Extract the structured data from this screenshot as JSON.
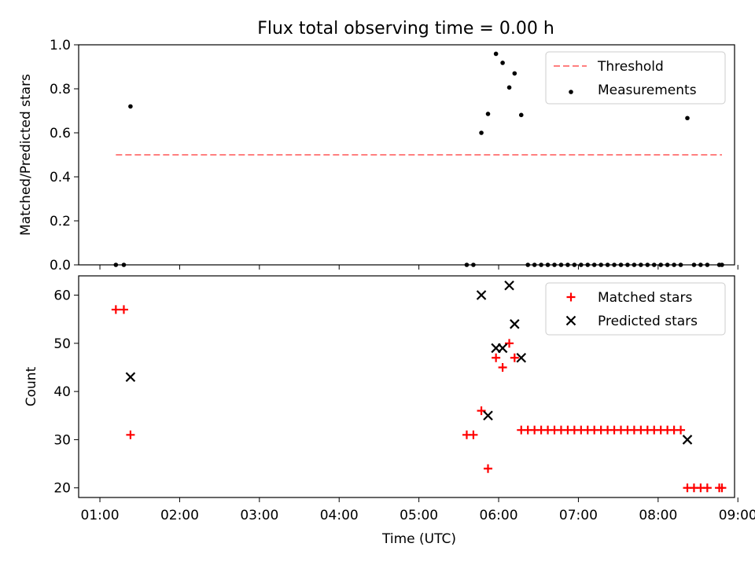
{
  "figure": {
    "title": "Flux total observing time = 0.00 h"
  },
  "chart_data": [
    {
      "type": "scatter",
      "xlabel": "",
      "ylabel": "Matched/Predicted stars",
      "x_unit": "time (UTC)",
      "xlim": [
        "01:00",
        "09:00"
      ],
      "ylim": [
        0,
        1.0
      ],
      "yticks": [
        "0.0",
        "0.2",
        "0.4",
        "0.6",
        "0.8",
        "1.0"
      ],
      "legend": [
        "Threshold",
        "Measurements"
      ],
      "legend_position": "top-right",
      "threshold": {
        "name": "Threshold",
        "value": 0.5,
        "x_start": "01:18",
        "x_end": "08:54",
        "color": "#ff7f7f",
        "style": "dashed"
      },
      "series": [
        {
          "name": "Measurements",
          "color": "#000000",
          "marker": "dot",
          "points": [
            {
              "x": "01:18",
              "y": 0
            },
            {
              "x": "01:24",
              "y": 0
            },
            {
              "x": "01:29",
              "y": 0.72
            },
            {
              "x": "05:42",
              "y": 0
            },
            {
              "x": "05:47",
              "y": 0
            },
            {
              "x": "05:53",
              "y": 0.6
            },
            {
              "x": "05:58",
              "y": 0.686
            },
            {
              "x": "06:04",
              "y": 0.959
            },
            {
              "x": "06:09",
              "y": 0.918
            },
            {
              "x": "06:14",
              "y": 0.806
            },
            {
              "x": "06:18",
              "y": 0.87
            },
            {
              "x": "06:23",
              "y": 0.681
            },
            {
              "x": "06:28",
              "y": 0
            },
            {
              "x": "06:33",
              "y": 0
            },
            {
              "x": "06:38",
              "y": 0
            },
            {
              "x": "06:43",
              "y": 0
            },
            {
              "x": "06:48",
              "y": 0
            },
            {
              "x": "06:53",
              "y": 0
            },
            {
              "x": "06:58",
              "y": 0
            },
            {
              "x": "07:03",
              "y": 0
            },
            {
              "x": "07:08",
              "y": 0
            },
            {
              "x": "07:13",
              "y": 0
            },
            {
              "x": "07:18",
              "y": 0
            },
            {
              "x": "07:23",
              "y": 0
            },
            {
              "x": "07:28",
              "y": 0
            },
            {
              "x": "07:33",
              "y": 0
            },
            {
              "x": "07:38",
              "y": 0
            },
            {
              "x": "07:43",
              "y": 0
            },
            {
              "x": "07:48",
              "y": 0
            },
            {
              "x": "07:53",
              "y": 0
            },
            {
              "x": "07:58",
              "y": 0
            },
            {
              "x": "08:03",
              "y": 0
            },
            {
              "x": "08:08",
              "y": 0
            },
            {
              "x": "08:13",
              "y": 0
            },
            {
              "x": "08:18",
              "y": 0
            },
            {
              "x": "08:23",
              "y": 0
            },
            {
              "x": "08:28",
              "y": 0.667
            },
            {
              "x": "08:33",
              "y": 0
            },
            {
              "x": "08:38",
              "y": 0
            },
            {
              "x": "08:43",
              "y": 0
            },
            {
              "x": "08:52",
              "y": 0
            },
            {
              "x": "08:54",
              "y": 0
            }
          ]
        }
      ]
    },
    {
      "type": "scatter",
      "xlabel": "Time (UTC)",
      "ylabel": "Count",
      "xlim": [
        "01:00",
        "09:00"
      ],
      "xticks": [
        "01:00",
        "02:00",
        "03:00",
        "04:00",
        "05:00",
        "06:00",
        "07:00",
        "08:00",
        "09:00"
      ],
      "ylim": [
        18,
        64
      ],
      "yticks": [
        "20",
        "30",
        "40",
        "50",
        "60"
      ],
      "legend": [
        "Matched stars",
        "Predicted stars"
      ],
      "legend_position": "top-right",
      "series": [
        {
          "name": "Matched stars",
          "color": "#ff0000",
          "marker": "plus",
          "points": [
            {
              "x": "01:18",
              "y": 57
            },
            {
              "x": "01:24",
              "y": 57
            },
            {
              "x": "01:29",
              "y": 31
            },
            {
              "x": "05:42",
              "y": 31
            },
            {
              "x": "05:47",
              "y": 31
            },
            {
              "x": "05:53",
              "y": 36
            },
            {
              "x": "05:58",
              "y": 24
            },
            {
              "x": "06:04",
              "y": 47
            },
            {
              "x": "06:09",
              "y": 45
            },
            {
              "x": "06:14",
              "y": 50
            },
            {
              "x": "06:18",
              "y": 47
            },
            {
              "x": "06:23",
              "y": 32
            },
            {
              "x": "06:28",
              "y": 32
            },
            {
              "x": "06:33",
              "y": 32
            },
            {
              "x": "06:38",
              "y": 32
            },
            {
              "x": "06:43",
              "y": 32
            },
            {
              "x": "06:48",
              "y": 32
            },
            {
              "x": "06:53",
              "y": 32
            },
            {
              "x": "06:58",
              "y": 32
            },
            {
              "x": "07:03",
              "y": 32
            },
            {
              "x": "07:08",
              "y": 32
            },
            {
              "x": "07:13",
              "y": 32
            },
            {
              "x": "07:18",
              "y": 32
            },
            {
              "x": "07:23",
              "y": 32
            },
            {
              "x": "07:28",
              "y": 32
            },
            {
              "x": "07:33",
              "y": 32
            },
            {
              "x": "07:38",
              "y": 32
            },
            {
              "x": "07:43",
              "y": 32
            },
            {
              "x": "07:48",
              "y": 32
            },
            {
              "x": "07:53",
              "y": 32
            },
            {
              "x": "07:58",
              "y": 32
            },
            {
              "x": "08:03",
              "y": 32
            },
            {
              "x": "08:08",
              "y": 32
            },
            {
              "x": "08:13",
              "y": 32
            },
            {
              "x": "08:18",
              "y": 32
            },
            {
              "x": "08:23",
              "y": 32
            },
            {
              "x": "08:28",
              "y": 20
            },
            {
              "x": "08:33",
              "y": 20
            },
            {
              "x": "08:38",
              "y": 20
            },
            {
              "x": "08:43",
              "y": 20
            },
            {
              "x": "08:52",
              "y": 20
            },
            {
              "x": "08:54",
              "y": 20
            }
          ]
        },
        {
          "name": "Predicted stars",
          "color": "#000000",
          "marker": "x",
          "points": [
            {
              "x": "01:29",
              "y": 43
            },
            {
              "x": "05:53",
              "y": 60
            },
            {
              "x": "05:58",
              "y": 35
            },
            {
              "x": "06:04",
              "y": 49
            },
            {
              "x": "06:09",
              "y": 49
            },
            {
              "x": "06:14",
              "y": 62
            },
            {
              "x": "06:18",
              "y": 54
            },
            {
              "x": "06:23",
              "y": 47
            },
            {
              "x": "08:28",
              "y": 30
            }
          ]
        }
      ]
    }
  ]
}
